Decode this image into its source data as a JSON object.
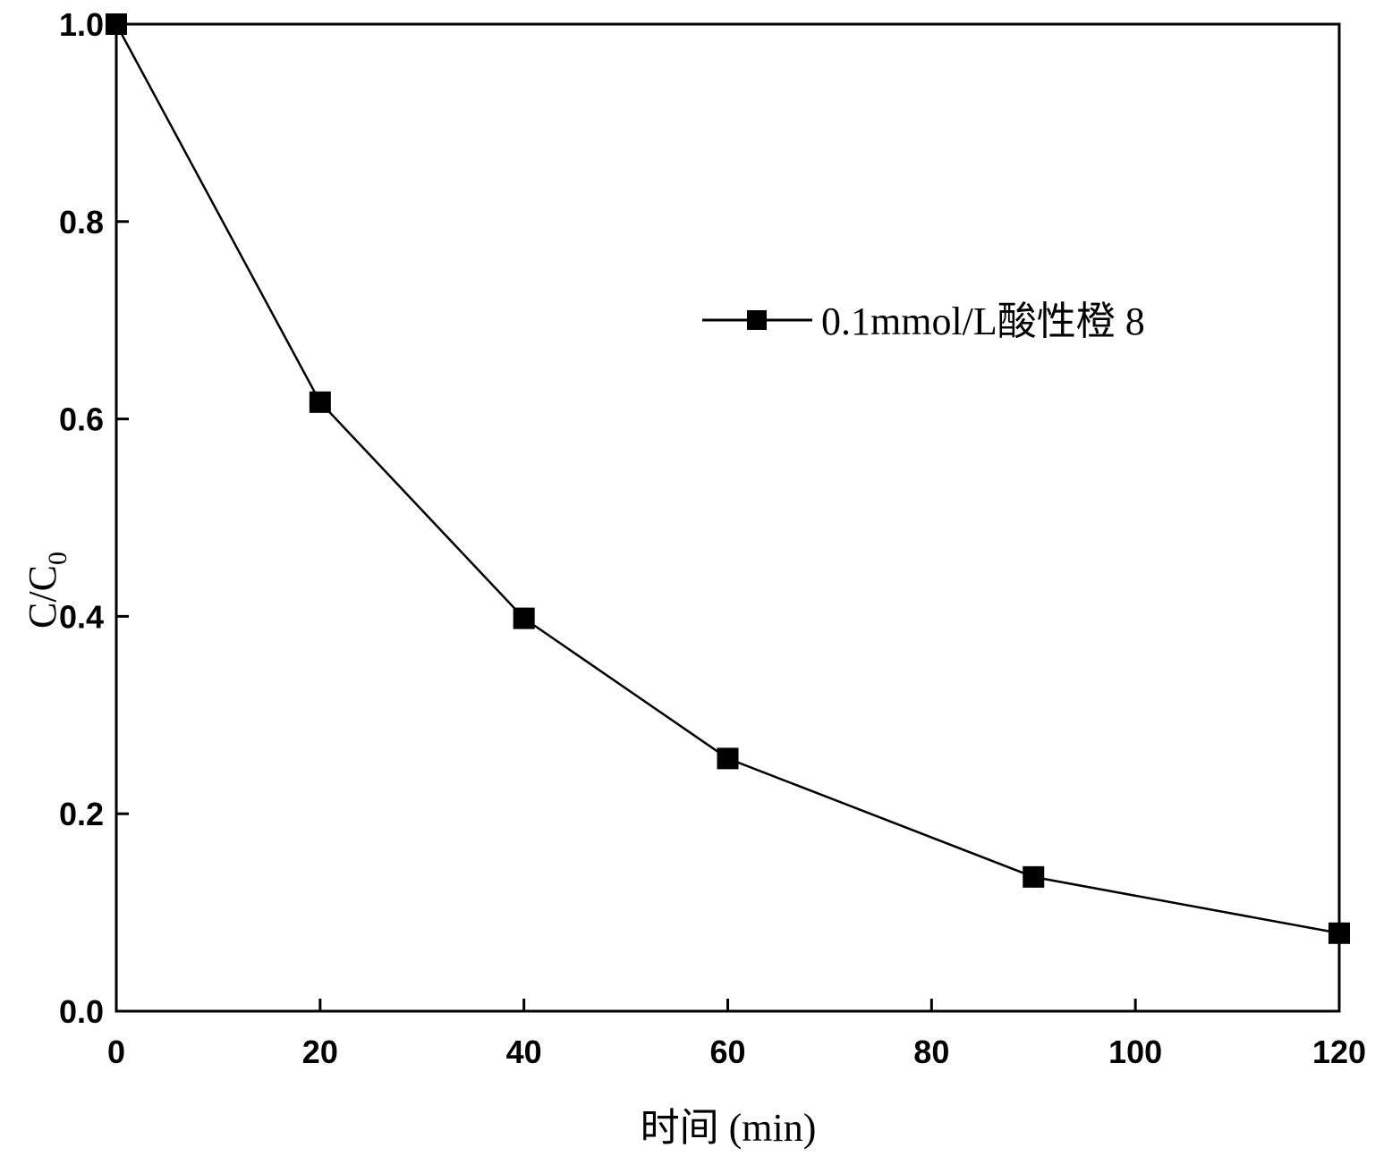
{
  "chart_data": {
    "type": "line",
    "title": "",
    "xlabel": "时间 (min)",
    "ylabel": "C/C",
    "ylabel_sub": "0",
    "xlim": [
      0,
      120
    ],
    "ylim": [
      0.0,
      1.0
    ],
    "xticks": [
      0,
      20,
      40,
      60,
      80,
      100,
      120
    ],
    "xtick_labels": [
      "0",
      "20",
      "40",
      "60",
      "80",
      "100",
      "120"
    ],
    "yticks": [
      0.0,
      0.2,
      0.4,
      0.6,
      0.8,
      1.0
    ],
    "ytick_labels": [
      "0.0",
      "0.2",
      "0.4",
      "0.6",
      "0.8",
      "1.0"
    ],
    "grid": false,
    "legend_position": "top-right",
    "series": [
      {
        "name": "0.1mmol/L酸性橙 8",
        "marker": "square",
        "color": "#000000",
        "x": [
          0,
          20,
          40,
          60,
          90,
          120
        ],
        "y": [
          1.0,
          0.617,
          0.398,
          0.256,
          0.136,
          0.079
        ]
      }
    ]
  }
}
